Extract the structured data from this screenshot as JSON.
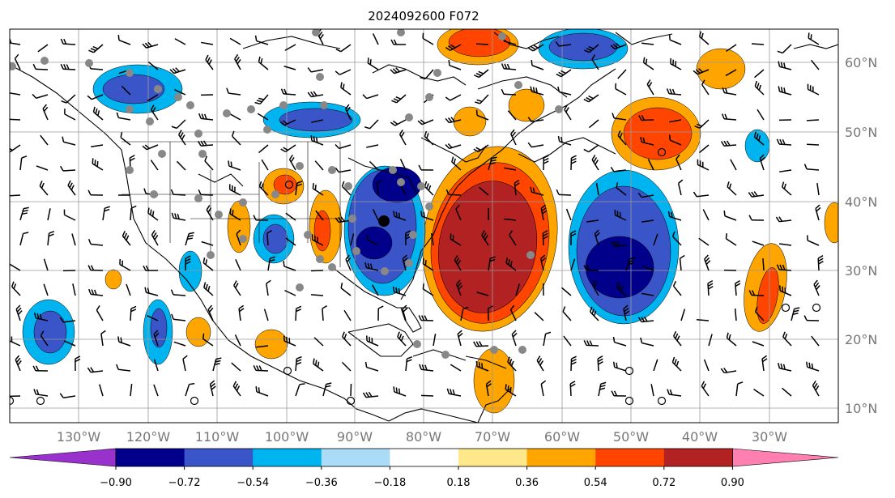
{
  "title": "2024092600 F072",
  "map": {
    "lon_range": [
      -138,
      -18
    ],
    "lat_range": [
      8,
      65
    ],
    "lon_labels": [
      "130°W",
      "120°W",
      "110°W",
      "100°W",
      "90°W",
      "80°W",
      "70°W",
      "60°W",
      "50°W",
      "40°W",
      "30°W"
    ],
    "lat_labels": [
      "60°N",
      "50°N",
      "40°N",
      "30°N",
      "20°N",
      "10°N"
    ]
  },
  "colorbar": {
    "levels": [
      "−0.90",
      "−0.72",
      "−0.54",
      "−0.36",
      "−0.18",
      "0.18",
      "0.36",
      "0.54",
      "0.72",
      "0.90"
    ],
    "under_color": "#9932cc",
    "colors": [
      "#00008b",
      "#3a55c8",
      "#00b4f0",
      "#aadcf8",
      "#ffffff",
      "#ffe88a",
      "#ffa500",
      "#ff4500",
      "#b22222"
    ],
    "over_color": "#ff80b0"
  }
}
